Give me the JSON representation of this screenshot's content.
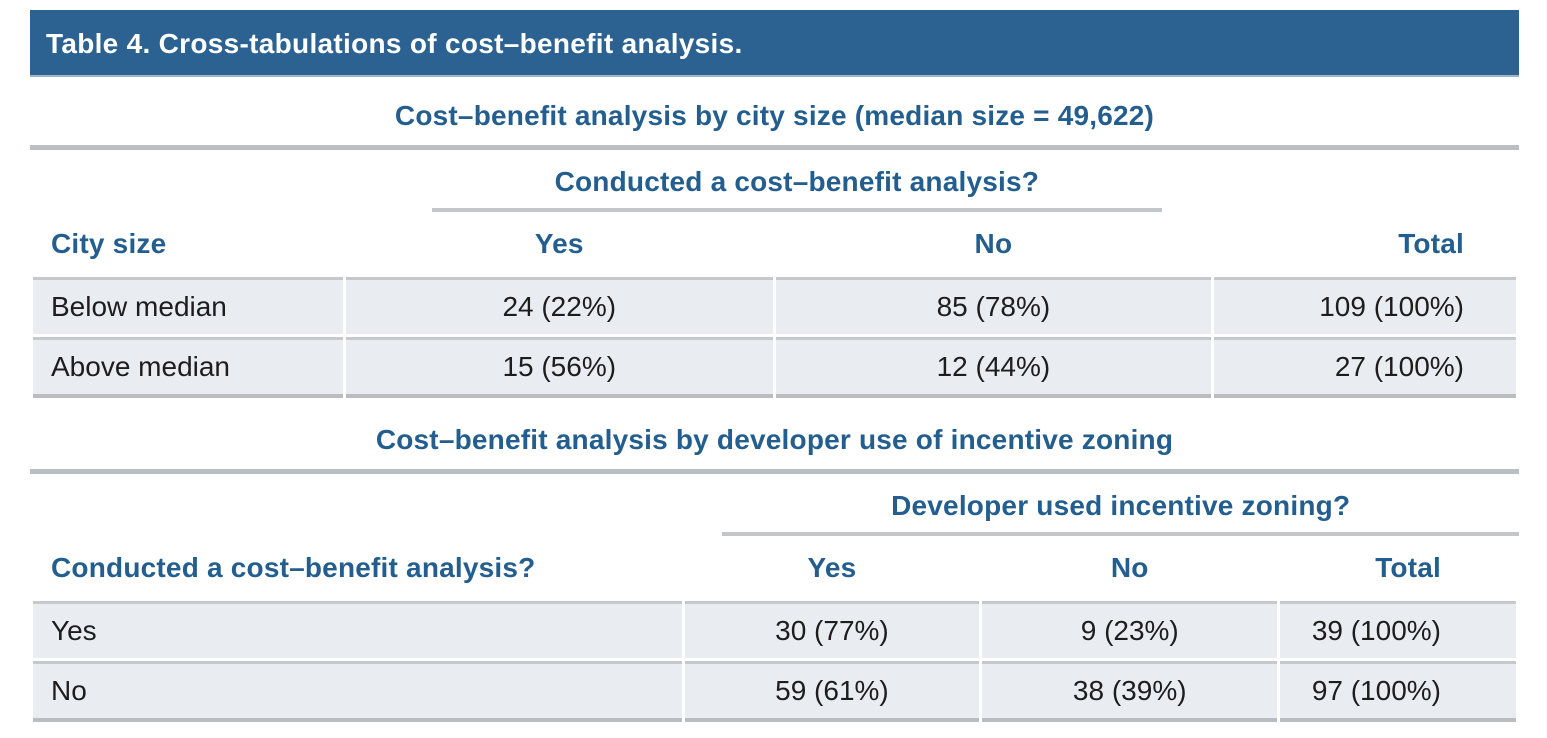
{
  "title_bar": {
    "label": "Table 4. Cross-tabulations of cost–benefit analysis."
  },
  "colors": {
    "title_bar_bg": "#2b6291",
    "accent_blue": "#235e8e",
    "row_bg": "#e9edf2",
    "rule_gray": "#bcbfc2",
    "body_text": "#1d1d1d"
  },
  "sections": [
    {
      "title": "Cost–benefit analysis by city size (median size = 49,622)",
      "spanning_header": "Conducted a cost–benefit analysis?",
      "columns": [
        "City size",
        "Yes",
        "No",
        "Total"
      ],
      "rows": [
        [
          "Below median",
          "24 (22%)",
          "85 (78%)",
          "109 (100%)"
        ],
        [
          "Above median",
          "15 (56%)",
          "12 (44%)",
          "27 (100%)"
        ]
      ]
    },
    {
      "title": "Cost–benefit analysis by developer use of incentive zoning",
      "spanning_header": "Developer used incentive zoning?",
      "columns": [
        "Conducted a cost–benefit analysis?",
        "Yes",
        "No",
        "Total"
      ],
      "rows": [
        [
          "Yes",
          "30 (77%)",
          "9 (23%)",
          "39 (100%)"
        ],
        [
          "No",
          "59 (61%)",
          "38 (39%)",
          "97 (100%)"
        ]
      ]
    }
  ]
}
